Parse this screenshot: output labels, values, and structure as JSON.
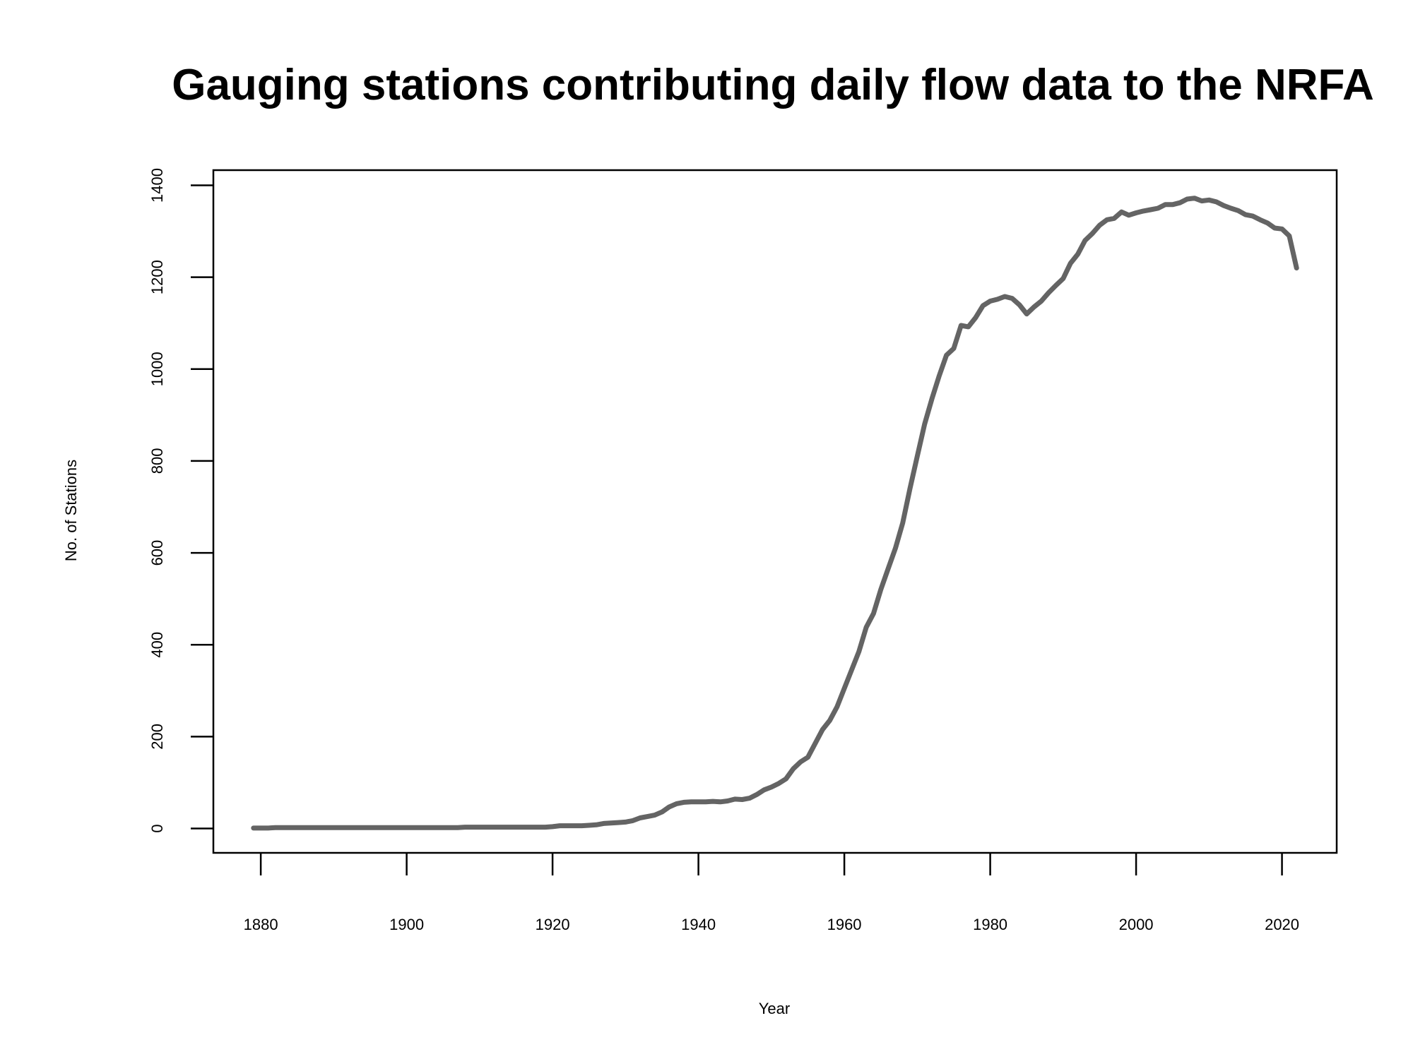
{
  "chart_data": {
    "type": "line",
    "title": "Gauging stations contributing daily flow data to the NRFA",
    "xlabel": "Year",
    "ylabel": "No. of Stations",
    "xlim": [
      1873.5,
      2027.5
    ],
    "ylim": [
      -53,
      1433
    ],
    "x_ticks": [
      1880,
      1900,
      1920,
      1940,
      1960,
      1980,
      2000,
      2020
    ],
    "y_ticks": [
      0,
      200,
      400,
      600,
      800,
      1000,
      1200,
      1400
    ],
    "grid": false,
    "legend": "none",
    "line_color": "#646464",
    "series": [
      {
        "x": [
          1879,
          1880,
          1881,
          1882,
          1883,
          1884,
          1885,
          1886,
          1887,
          1888,
          1889,
          1890,
          1891,
          1892,
          1893,
          1894,
          1895,
          1896,
          1897,
          1898,
          1899,
          1900,
          1901,
          1902,
          1903,
          1904,
          1905,
          1906,
          1907,
          1908,
          1909,
          1910,
          1911,
          1912,
          1913,
          1914,
          1915,
          1916,
          1917,
          1918,
          1919,
          1920,
          1921,
          1922,
          1923,
          1924,
          1925,
          1926,
          1927,
          1928,
          1929,
          1930,
          1931,
          1932,
          1933,
          1934,
          1935,
          1936,
          1937,
          1938,
          1939,
          1940,
          1941,
          1942,
          1943,
          1944,
          1945,
          1946,
          1947,
          1948,
          1949,
          1950,
          1951,
          1952,
          1953,
          1954,
          1955,
          1956,
          1957,
          1958,
          1959,
          1960,
          1961,
          1962,
          1963,
          1964,
          1965,
          1966,
          1967,
          1968,
          1969,
          1970,
          1971,
          1972,
          1973,
          1974,
          1975,
          1976,
          1977,
          1978,
          1979,
          1980,
          1981,
          1982,
          1983,
          1984,
          1985,
          1986,
          1987,
          1988,
          1989,
          1990,
          1991,
          1992,
          1993,
          1994,
          1995,
          1996,
          1997,
          1998,
          1999,
          2000,
          2001,
          2002,
          2003,
          2004,
          2005,
          2006,
          2007,
          2008,
          2009,
          2010,
          2011,
          2012,
          2013,
          2014,
          2015,
          2016,
          2017,
          2018,
          2019,
          2020,
          2021,
          2022
        ],
        "values": [
          1,
          1,
          1,
          2,
          2,
          2,
          2,
          2,
          2,
          2,
          2,
          2,
          2,
          2,
          2,
          2,
          2,
          2,
          2,
          2,
          2,
          2,
          2,
          2,
          2,
          2,
          2,
          2,
          2,
          3,
          3,
          3,
          3,
          3,
          3,
          3,
          3,
          3,
          3,
          3,
          3,
          4,
          6,
          6,
          6,
          6,
          7,
          8,
          11,
          12,
          13,
          14,
          17,
          23,
          26,
          29,
          36,
          47,
          54,
          57,
          58,
          58,
          58,
          59,
          58,
          60,
          64,
          63,
          66,
          74,
          84,
          90,
          98,
          108,
          130,
          145,
          155,
          185,
          215,
          235,
          265,
          305,
          345,
          385,
          438,
          468,
          520,
          565,
          610,
          665,
          740,
          810,
          880,
          935,
          985,
          1030,
          1045,
          1095,
          1092,
          1112,
          1138,
          1148,
          1152,
          1158,
          1154,
          1140,
          1120,
          1135,
          1148,
          1166,
          1182,
          1197,
          1230,
          1250,
          1280,
          1295,
          1313,
          1325,
          1328,
          1342,
          1335,
          1340,
          1344,
          1347,
          1350,
          1358,
          1358,
          1362,
          1370,
          1372,
          1366,
          1368,
          1364,
          1356,
          1350,
          1345,
          1336,
          1333,
          1325,
          1318,
          1307,
          1305,
          1290,
          1220
        ]
      }
    ]
  }
}
